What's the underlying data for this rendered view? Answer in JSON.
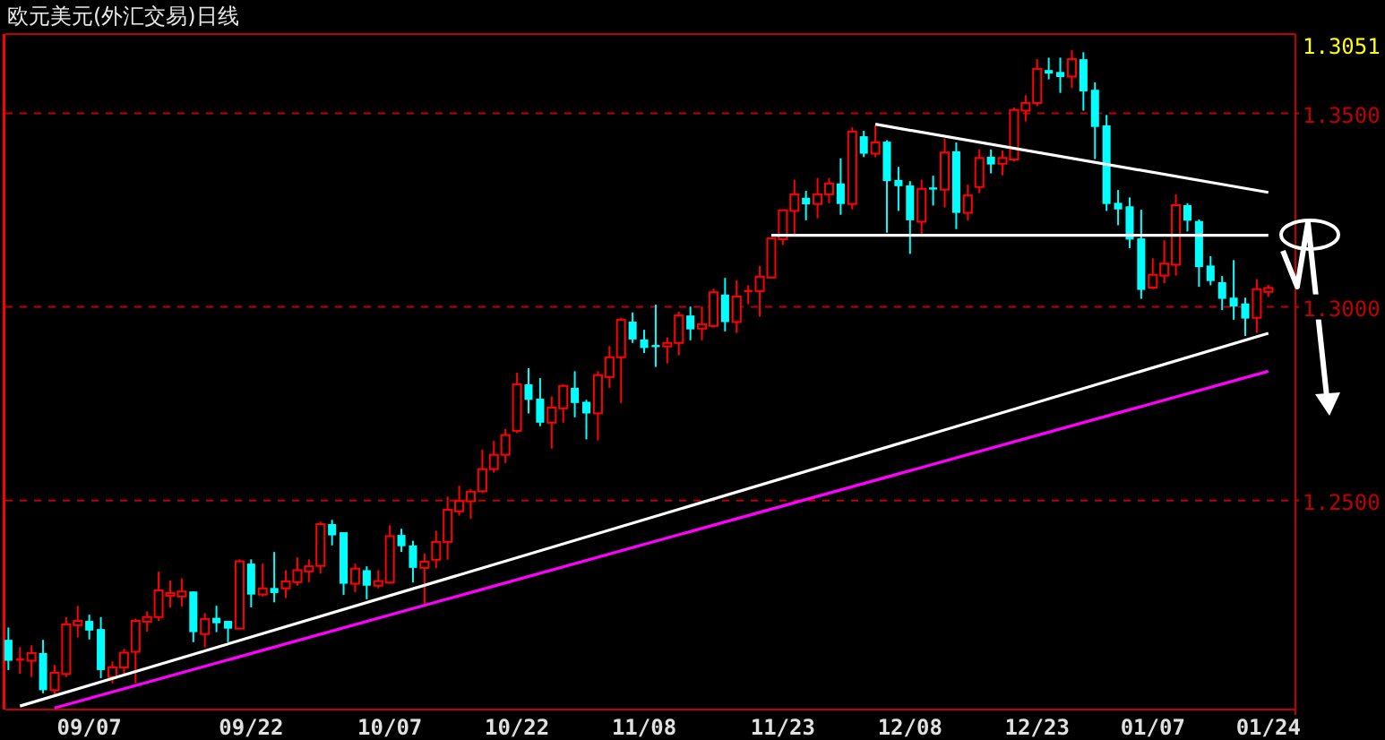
{
  "chart_data": {
    "type": "candlestick",
    "title": "欧元美元(外汇交易)日线",
    "categories": [
      null,
      null,
      null,
      null,
      null,
      null,
      null,
      "09/07",
      null,
      null,
      null,
      null,
      null,
      null,
      null,
      null,
      null,
      null,
      null,
      null,
      null,
      "09/22",
      null,
      null,
      null,
      null,
      null,
      null,
      null,
      null,
      null,
      null,
      null,
      "10/07",
      null,
      null,
      null,
      null,
      null,
      null,
      null,
      null,
      null,
      null,
      "10/22",
      null,
      null,
      null,
      null,
      null,
      null,
      null,
      null,
      null,
      null,
      "11/08",
      null,
      null,
      null,
      null,
      null,
      null,
      null,
      null,
      null,
      null,
      null,
      "11/23",
      null,
      null,
      null,
      null,
      null,
      null,
      null,
      null,
      null,
      null,
      "12/08",
      null,
      null,
      null,
      null,
      null,
      null,
      null,
      null,
      null,
      null,
      "12/23",
      null,
      null,
      null,
      null,
      null,
      null,
      null,
      null,
      null,
      "01/07",
      null,
      null,
      null,
      null,
      null,
      null,
      null,
      null,
      null,
      "01/24"
    ],
    "ohlc": [
      [
        1.214,
        1.2172,
        1.2062,
        1.2086
      ],
      [
        1.2089,
        1.2121,
        1.2052,
        1.2089
      ],
      [
        1.2086,
        1.2126,
        1.2044,
        1.2106
      ],
      [
        1.2106,
        1.214,
        1.2002,
        1.201
      ],
      [
        1.201,
        1.2075,
        1.1998,
        1.2055
      ],
      [
        1.2052,
        1.2199,
        1.2044,
        1.218
      ],
      [
        1.2178,
        1.2228,
        1.2146,
        1.2189
      ],
      [
        1.2189,
        1.2205,
        1.2141,
        1.2164
      ],
      [
        1.2168,
        1.2199,
        1.2041,
        1.2062
      ],
      [
        1.2044,
        1.2084,
        1.2028,
        1.2069
      ],
      [
        1.2069,
        1.2117,
        1.2052,
        1.2107
      ],
      [
        1.2109,
        1.2195,
        1.2028,
        1.2189
      ],
      [
        1.2187,
        1.2214,
        1.2161,
        1.2199
      ],
      [
        1.2199,
        1.2316,
        1.2189,
        1.2268
      ],
      [
        1.2254,
        1.2293,
        1.2224,
        1.2261
      ],
      [
        1.2252,
        1.2299,
        1.2226,
        1.2265
      ],
      [
        1.2265,
        1.2265,
        1.2134,
        1.216
      ],
      [
        1.2155,
        1.2209,
        1.2121,
        1.2194
      ],
      [
        1.2197,
        1.2228,
        1.216,
        1.2183
      ],
      [
        1.2189,
        1.2189,
        1.2134,
        1.2169
      ],
      [
        1.2169,
        1.2348,
        1.2168,
        1.2343
      ],
      [
        1.2337,
        1.2348,
        1.2224,
        1.2257
      ],
      [
        1.2257,
        1.2337,
        1.2252,
        1.2273
      ],
      [
        1.2274,
        1.2367,
        1.2237,
        1.2261
      ],
      [
        1.2273,
        1.232,
        1.2248,
        1.2291
      ],
      [
        1.2289,
        1.2353,
        1.228,
        1.232
      ],
      [
        1.2317,
        1.2348,
        1.2289,
        1.233
      ],
      [
        1.2331,
        1.2445,
        1.2311,
        1.2439
      ],
      [
        1.2439,
        1.245,
        1.2384,
        1.241
      ],
      [
        1.2418,
        1.2418,
        1.2256,
        1.2285
      ],
      [
        1.2285,
        1.2337,
        1.2263,
        1.2324
      ],
      [
        1.232,
        1.233,
        1.2245,
        1.228
      ],
      [
        1.228,
        1.232,
        1.2273,
        1.2292
      ],
      [
        1.2288,
        1.2436,
        1.2285,
        1.2408
      ],
      [
        1.2411,
        1.2427,
        1.2367,
        1.2382
      ],
      [
        1.2384,
        1.2396,
        1.2288,
        1.2326
      ],
      [
        1.2326,
        1.2363,
        1.2229,
        1.2342
      ],
      [
        1.2347,
        1.2422,
        1.2325,
        1.2393
      ],
      [
        1.2393,
        1.251,
        1.2347,
        1.2476
      ],
      [
        1.2472,
        1.2538,
        1.2461,
        1.2499
      ],
      [
        1.2498,
        1.2529,
        1.2453,
        1.2523
      ],
      [
        1.2524,
        1.2631,
        1.2519,
        1.2581
      ],
      [
        1.2581,
        1.2654,
        1.2572,
        1.2618
      ],
      [
        1.2618,
        1.2685,
        1.2597,
        1.2669
      ],
      [
        1.268,
        1.283,
        1.2674,
        1.28
      ],
      [
        1.28,
        1.2842,
        1.2725,
        1.276
      ],
      [
        1.2763,
        1.2816,
        1.2692,
        1.2701
      ],
      [
        1.2701,
        1.2769,
        1.2634,
        1.274
      ],
      [
        1.2738,
        1.28,
        1.2701,
        1.2796
      ],
      [
        1.2791,
        1.2834,
        1.2715,
        1.2752
      ],
      [
        1.2755,
        1.276,
        1.2658,
        1.2725
      ],
      [
        1.2725,
        1.2834,
        1.2655,
        1.2824
      ],
      [
        1.2819,
        1.2899,
        1.2791,
        1.287
      ],
      [
        1.287,
        1.2972,
        1.2752,
        1.2967
      ],
      [
        1.2962,
        1.2986,
        1.2907,
        1.2916
      ],
      [
        1.2916,
        1.2941,
        1.2881,
        1.2894
      ],
      [
        1.2899,
        1.3006,
        1.2845,
        1.2899
      ],
      [
        1.2898,
        1.2921,
        1.2854,
        1.2907
      ],
      [
        1.2907,
        1.2988,
        1.2875,
        1.2978
      ],
      [
        1.2978,
        1.3001,
        1.2914,
        1.2942
      ],
      [
        1.2944,
        1.3001,
        1.2914,
        1.2955
      ],
      [
        1.2951,
        1.3047,
        1.2947,
        1.3038
      ],
      [
        1.3032,
        1.3075,
        1.2937,
        1.2961
      ],
      [
        1.2961,
        1.3069,
        1.2933,
        1.3027
      ],
      [
        1.3037,
        1.3056,
        1.3007,
        1.3041
      ],
      [
        1.3041,
        1.3106,
        1.2975,
        1.3078
      ],
      [
        1.3076,
        1.318,
        1.3076,
        1.3177
      ],
      [
        1.3175,
        1.325,
        1.316,
        1.325
      ],
      [
        1.3248,
        1.3328,
        1.3186,
        1.3291
      ],
      [
        1.3282,
        1.33,
        1.3224,
        1.3265
      ],
      [
        1.3266,
        1.3333,
        1.3229,
        1.3291
      ],
      [
        1.3291,
        1.3333,
        1.3268,
        1.3319
      ],
      [
        1.3319,
        1.3384,
        1.3238,
        1.3266
      ],
      [
        1.3266,
        1.3464,
        1.3252,
        1.3453
      ],
      [
        1.3441,
        1.3455,
        1.3387,
        1.3396
      ],
      [
        1.3396,
        1.3469,
        1.3387,
        1.3425
      ],
      [
        1.3427,
        1.3431,
        1.3192,
        1.3325
      ],
      [
        1.3328,
        1.3362,
        1.3248,
        1.3312
      ],
      [
        1.3314,
        1.3325,
        1.3137,
        1.3224
      ],
      [
        1.322,
        1.3328,
        1.3186,
        1.3305
      ],
      [
        1.3306,
        1.3339,
        1.3262,
        1.3306
      ],
      [
        1.3303,
        1.3435,
        1.3257,
        1.3399
      ],
      [
        1.3402,
        1.3425,
        1.3201,
        1.3243
      ],
      [
        1.3243,
        1.3316,
        1.3223,
        1.3288
      ],
      [
        1.331,
        1.3407,
        1.3294,
        1.3385
      ],
      [
        1.3388,
        1.3407,
        1.3345,
        1.3368
      ],
      [
        1.337,
        1.3404,
        1.334,
        1.3385
      ],
      [
        1.3381,
        1.3515,
        1.3376,
        1.3509
      ],
      [
        1.3507,
        1.3547,
        1.3479,
        1.3527
      ],
      [
        1.3527,
        1.364,
        1.3519,
        1.3615
      ],
      [
        1.3612,
        1.3644,
        1.3588,
        1.3603
      ],
      [
        1.3607,
        1.3644,
        1.3553,
        1.3594
      ],
      [
        1.3595,
        1.3663,
        1.3566,
        1.364
      ],
      [
        1.364,
        1.3658,
        1.3507,
        1.3557
      ],
      [
        1.3561,
        1.358,
        1.3382,
        1.3465
      ],
      [
        1.3469,
        1.3496,
        1.3248,
        1.3266
      ],
      [
        1.3269,
        1.3302,
        1.3211,
        1.3252
      ],
      [
        1.326,
        1.3283,
        1.3152,
        1.3174
      ],
      [
        1.3177,
        1.3251,
        1.3021,
        1.3044
      ],
      [
        1.305,
        1.3126,
        1.3046,
        1.3083
      ],
      [
        1.3081,
        1.3172,
        1.3061,
        1.3112
      ],
      [
        1.3109,
        1.3291,
        1.3081,
        1.3263
      ],
      [
        1.3263,
        1.3268,
        1.3195,
        1.3223
      ],
      [
        1.3222,
        1.3226,
        1.3052,
        1.3103
      ],
      [
        1.3107,
        1.3131,
        1.3056,
        1.3067
      ],
      [
        1.3064,
        1.308,
        1.2992,
        1.3021
      ],
      [
        1.3024,
        1.3121,
        1.2967,
        1.3001
      ],
      [
        1.3009,
        1.3024,
        1.2925,
        1.297
      ],
      [
        1.2972,
        1.3072,
        1.2933,
        1.3046
      ],
      [
        1.3039,
        1.3057,
        1.3026,
        1.3049
      ]
    ],
    "colors": [
      "#00ffff",
      "#ff0000",
      "#ff0000",
      "#00ffff",
      "#ff0000",
      "#ff0000",
      "#ff0000",
      "#00ffff",
      "#00ffff",
      "#ff0000",
      "#ff0000",
      "#ff0000",
      "#ff0000",
      "#ff0000",
      "#ff0000",
      "#ff0000",
      "#00ffff",
      "#ff0000",
      "#00ffff",
      "#00ffff",
      "#ff0000",
      "#00ffff",
      "#ff0000",
      "#00ffff",
      "#ff0000",
      "#ff0000",
      "#ff0000",
      "#ff0000",
      "#00ffff",
      "#00ffff",
      "#ff0000",
      "#00ffff",
      "#ff0000",
      "#ff0000",
      "#00ffff",
      "#00ffff",
      "#ff0000",
      "#ff0000",
      "#ff0000",
      "#ff0000",
      "#ff0000",
      "#ff0000",
      "#ff0000",
      "#ff0000",
      "#ff0000",
      "#00ffff",
      "#00ffff",
      "#ff0000",
      "#ff0000",
      "#00ffff",
      "#00ffff",
      "#ff0000",
      "#ff0000",
      "#ff0000",
      "#00ffff",
      "#00ffff",
      "#00ffff",
      "#ff0000",
      "#ff0000",
      "#00ffff",
      "#ff0000",
      "#ff0000",
      "#00ffff",
      "#ff0000",
      "#ff0000",
      "#ff0000",
      "#ff0000",
      "#ff0000",
      "#ff0000",
      "#00ffff",
      "#ff0000",
      "#ff0000",
      "#00ffff",
      "#ff0000",
      "#00ffff",
      "#ff0000",
      "#00ffff",
      "#00ffff",
      "#00ffff",
      "#ff0000",
      "#00ffff",
      "#ff0000",
      "#00ffff",
      "#ff0000",
      "#ff0000",
      "#00ffff",
      "#ff0000",
      "#ff0000",
      "#ff0000",
      "#ff0000",
      "#00ffff",
      "#00ffff",
      "#ff0000",
      "#00ffff",
      "#00ffff",
      "#00ffff",
      "#00ffff",
      "#00ffff",
      "#00ffff",
      "#ff0000",
      "#ff0000",
      "#ff0000",
      "#00ffff",
      "#00ffff",
      "#00ffff",
      "#00ffff",
      "#00ffff",
      "#00ffff",
      "#ff0000",
      "#ff0000"
    ],
    "series": [
      {
        "type": "line",
        "color": "#ffffff",
        "values": [
          null,
          1.1969,
          null,
          null,
          null,
          null,
          null,
          null,
          null,
          null,
          null,
          null,
          null,
          null,
          null,
          null,
          null,
          null,
          null,
          null,
          null,
          null,
          null,
          null,
          null,
          null,
          null,
          null,
          null,
          null,
          null,
          null,
          null,
          null,
          null,
          null,
          null,
          null,
          null,
          null,
          null,
          null,
          null,
          null,
          null,
          null,
          null,
          null,
          null,
          null,
          null,
          null,
          null,
          null,
          null,
          null,
          null,
          null,
          null,
          null,
          null,
          null,
          null,
          null,
          null,
          null,
          null,
          null,
          null,
          null,
          null,
          null,
          null,
          null,
          null,
          null,
          null,
          null,
          null,
          null,
          null,
          null,
          null,
          null,
          null,
          null,
          null,
          null,
          null,
          null,
          null,
          null,
          null,
          null,
          null,
          null,
          null,
          null,
          null,
          null,
          null,
          null,
          null,
          null,
          null,
          null,
          null,
          null,
          null,
          1.2932
        ]
      },
      {
        "type": "line",
        "color": "#ff00ff",
        "values": [
          null,
          null,
          null,
          null,
          1.1964,
          null,
          null,
          null,
          null,
          null,
          null,
          null,
          null,
          null,
          null,
          null,
          null,
          null,
          null,
          null,
          null,
          null,
          null,
          null,
          null,
          null,
          null,
          null,
          null,
          null,
          null,
          null,
          null,
          null,
          null,
          null,
          null,
          null,
          null,
          null,
          null,
          null,
          null,
          null,
          null,
          null,
          null,
          null,
          null,
          null,
          null,
          null,
          null,
          null,
          null,
          null,
          null,
          null,
          null,
          null,
          null,
          null,
          null,
          null,
          null,
          null,
          null,
          null,
          null,
          null,
          null,
          null,
          null,
          null,
          null,
          null,
          null,
          null,
          null,
          null,
          null,
          null,
          null,
          null,
          null,
          null,
          null,
          null,
          null,
          null,
          null,
          null,
          null,
          null,
          null,
          null,
          null,
          null,
          null,
          null,
          null,
          null,
          null,
          null,
          null,
          null,
          null,
          null,
          null,
          1.2834
        ]
      },
      {
        "type": "line",
        "color": "#ffffff",
        "values": [
          null,
          null,
          null,
          null,
          null,
          null,
          null,
          null,
          null,
          null,
          null,
          null,
          null,
          null,
          null,
          null,
          null,
          null,
          null,
          null,
          null,
          null,
          null,
          null,
          null,
          null,
          null,
          null,
          null,
          null,
          null,
          null,
          null,
          null,
          null,
          null,
          null,
          null,
          null,
          null,
          null,
          null,
          null,
          null,
          null,
          null,
          null,
          null,
          null,
          null,
          null,
          null,
          null,
          null,
          null,
          null,
          null,
          null,
          null,
          null,
          null,
          null,
          null,
          null,
          null,
          null,
          null,
          null,
          null,
          null,
          null,
          null,
          null,
          null,
          null,
          1.3472,
          null,
          null,
          null,
          null,
          null,
          null,
          null,
          null,
          null,
          null,
          null,
          null,
          null,
          null,
          null,
          null,
          null,
          null,
          null,
          null,
          null,
          null,
          null,
          null,
          null,
          null,
          null,
          null,
          null,
          null,
          null,
          null,
          null,
          1.3296
        ]
      },
      {
        "type": "line",
        "color": "#ffffff",
        "values": [
          null,
          null,
          null,
          null,
          null,
          null,
          null,
          null,
          null,
          null,
          null,
          null,
          null,
          null,
          null,
          null,
          null,
          null,
          null,
          null,
          null,
          null,
          null,
          null,
          null,
          null,
          null,
          null,
          null,
          null,
          null,
          null,
          null,
          null,
          null,
          null,
          null,
          null,
          null,
          null,
          null,
          null,
          null,
          null,
          null,
          null,
          null,
          null,
          null,
          null,
          null,
          null,
          null,
          null,
          null,
          null,
          null,
          null,
          null,
          null,
          null,
          null,
          null,
          null,
          null,
          null,
          1.3185,
          null,
          null,
          null,
          null,
          null,
          null,
          null,
          null,
          null,
          null,
          null,
          null,
          null,
          null,
          null,
          null,
          null,
          null,
          null,
          null,
          null,
          null,
          null,
          null,
          null,
          null,
          null,
          null,
          null,
          null,
          null,
          null,
          null,
          null,
          null,
          null,
          null,
          null,
          null,
          null,
          null,
          null,
          1.3185
        ]
      }
    ],
    "ylim": [
      1.196,
      1.3705
    ],
    "yticks": [
      {
        "value": 1.25,
        "label": "1.2500"
      },
      {
        "value": 1.3,
        "label": "1.3000"
      },
      {
        "value": 1.35,
        "label": "1.3500"
      }
    ],
    "grid": "y",
    "annotations": [
      "1.3051"
    ]
  }
}
